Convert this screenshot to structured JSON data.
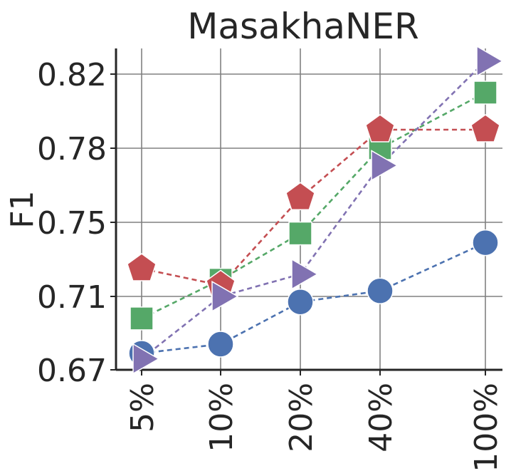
{
  "chart_data": {
    "type": "line",
    "title": "MasakhaNER",
    "xlabel": "",
    "ylabel": "F1",
    "categories": [
      "5%",
      "10%",
      "20%",
      "40%",
      "100%"
    ],
    "x_positions": [
      5,
      10,
      20,
      40,
      100
    ],
    "y_ticks": [
      0.67,
      0.71,
      0.75,
      0.78,
      0.82
    ],
    "y_tick_labels": [
      "0.67",
      "0.71",
      "0.75",
      "0.78",
      "0.82"
    ],
    "ylim": [
      0.67,
      0.83
    ],
    "grid": true,
    "line_style": "dashed",
    "series": [
      {
        "values": [
          0.679,
          0.684,
          0.707,
          0.713,
          0.739
        ],
        "color": "#4C72B0",
        "marker": "circle"
      },
      {
        "values": [
          0.698,
          0.719,
          0.744,
          0.78,
          0.81
        ],
        "color": "#55A868",
        "marker": "square"
      },
      {
        "values": [
          0.725,
          0.716,
          0.76,
          0.79,
          0.79
        ],
        "color": "#C44E52",
        "marker": "pentagon"
      },
      {
        "values": [
          0.676,
          0.71,
          0.722,
          0.773,
          0.827
        ],
        "color": "#8172B2",
        "marker": "triangle-right"
      }
    ]
  }
}
